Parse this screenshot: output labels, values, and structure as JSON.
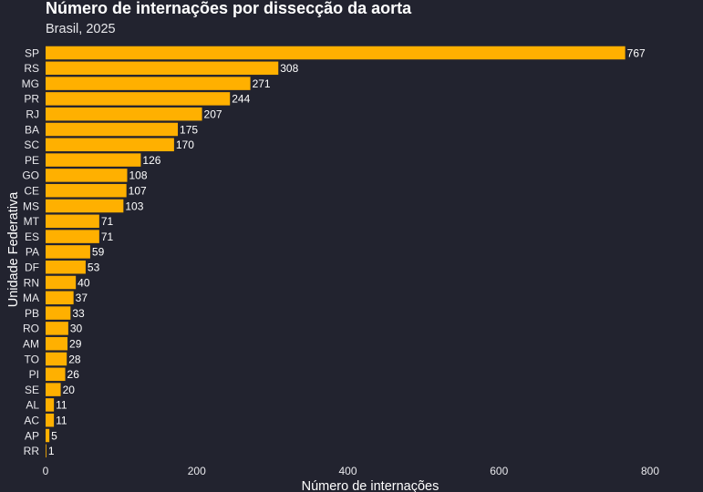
{
  "chart_data": {
    "type": "bar",
    "orientation": "horizontal",
    "title": "Número de internações por dissecção da aorta",
    "subtitle": "Brasil, 2025",
    "xlabel": "Número de internações",
    "ylabel": "Unidade Federativa",
    "categories": [
      "SP",
      "RS",
      "MG",
      "PR",
      "RJ",
      "BA",
      "SC",
      "PE",
      "GO",
      "CE",
      "MS",
      "MT",
      "ES",
      "PA",
      "DF",
      "RN",
      "MA",
      "PB",
      "RO",
      "AM",
      "TO",
      "PI",
      "SE",
      "AL",
      "AC",
      "AP",
      "RR"
    ],
    "values": [
      767,
      308,
      271,
      244,
      207,
      175,
      170,
      126,
      108,
      107,
      103,
      71,
      71,
      59,
      53,
      40,
      37,
      33,
      30,
      29,
      28,
      26,
      20,
      11,
      11,
      5,
      1
    ],
    "xlim": [
      0,
      800
    ],
    "xticks": [
      0,
      200,
      400,
      600,
      800
    ],
    "grid": false,
    "data_labels": true,
    "bar_color": "#ffb000",
    "background_color": "#22232f"
  }
}
